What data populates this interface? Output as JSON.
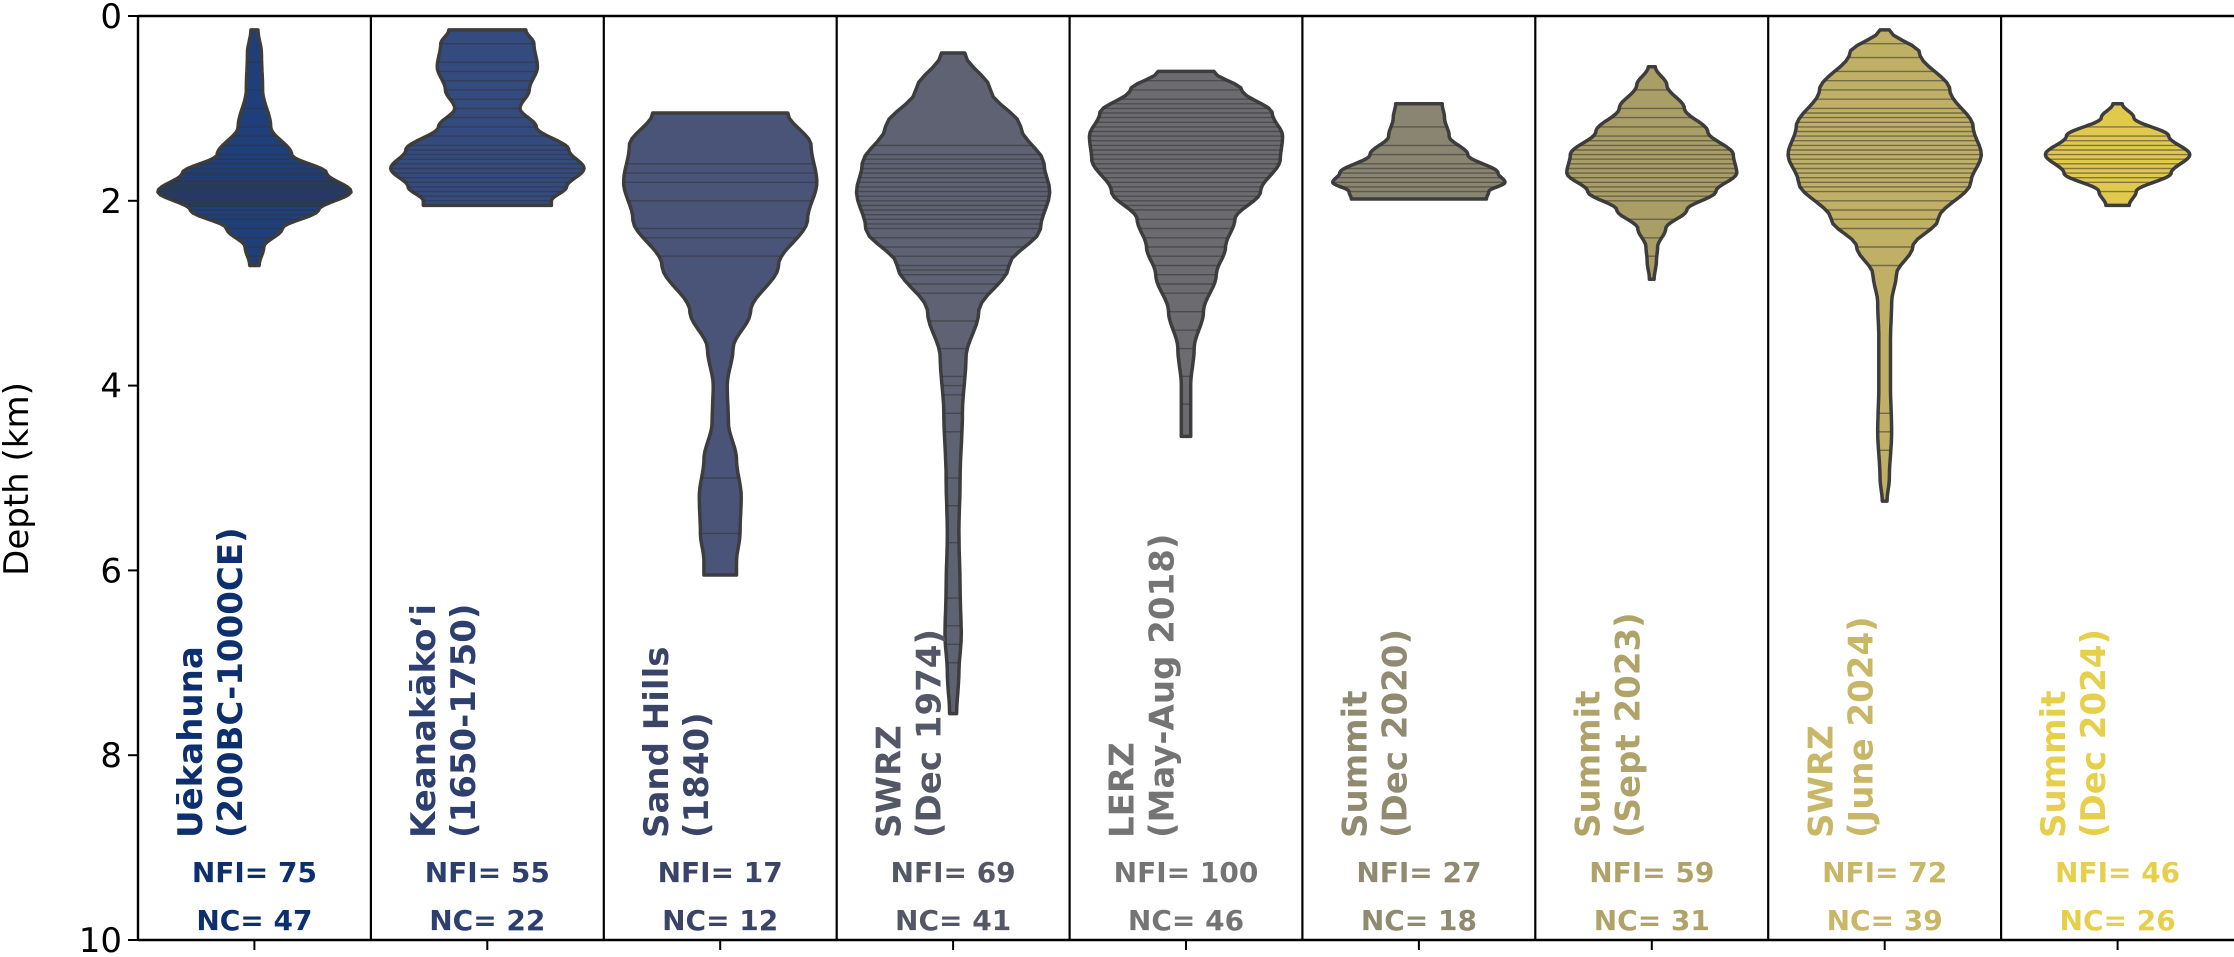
{
  "chart_data": {
    "type": "violin",
    "ylabel": "Depth (km)",
    "ylim": [
      10,
      0
    ],
    "yticks": [
      0,
      2,
      4,
      6,
      8,
      10
    ],
    "ytick_labels": [
      "0",
      "2",
      "4",
      "6",
      "8",
      "10"
    ],
    "series": [
      {
        "name_lines": [
          "Uēkahuna",
          "(200BC-1000CE)"
        ],
        "color": "#1f3f7a",
        "label_color": "#0d2f6e",
        "nfi": "NFI= 75",
        "nc": "NC= 47",
        "depth_min": 0.15,
        "depth_max": 2.7,
        "mode": 1.9,
        "max_halfwidth": 0.83,
        "profile": [
          [
            0.15,
            0.03
          ],
          [
            0.4,
            0.06
          ],
          [
            0.8,
            0.07
          ],
          [
            1.2,
            0.14
          ],
          [
            1.5,
            0.32
          ],
          [
            1.7,
            0.62
          ],
          [
            1.9,
            0.83
          ],
          [
            2.1,
            0.55
          ],
          [
            2.3,
            0.24
          ],
          [
            2.5,
            0.08
          ],
          [
            2.7,
            0.04
          ]
        ],
        "lines": [
          0.5,
          0.8,
          1.0,
          1.2,
          1.3,
          1.4,
          1.5,
          1.55,
          1.6,
          1.65,
          1.7,
          1.72,
          1.75,
          1.78,
          1.8,
          1.82,
          1.84,
          1.86,
          1.88,
          1.9,
          1.92,
          1.94,
          1.96,
          1.98,
          2.0,
          2.02,
          2.04,
          2.06,
          2.1,
          2.15,
          2.2,
          2.3,
          2.4,
          2.5,
          2.6
        ]
      },
      {
        "name_lines": [
          "Keanakākoʻi",
          "(1650-1750)"
        ],
        "color": "#344b80",
        "label_color": "#2d3f6f",
        "nfi": "NFI= 55",
        "nc": "NC= 22",
        "depth_min": 0.15,
        "depth_max": 2.05,
        "mode": 1.65,
        "max_halfwidth": 0.83,
        "profile": [
          [
            0.15,
            0.33
          ],
          [
            0.3,
            0.4
          ],
          [
            0.55,
            0.43
          ],
          [
            0.8,
            0.36
          ],
          [
            1.0,
            0.28
          ],
          [
            1.2,
            0.42
          ],
          [
            1.45,
            0.7
          ],
          [
            1.65,
            0.83
          ],
          [
            1.85,
            0.68
          ],
          [
            2.0,
            0.55
          ],
          [
            2.05,
            0.55
          ]
        ],
        "lines": [
          0.3,
          0.5,
          0.6,
          0.7,
          0.8,
          0.9,
          1.0,
          1.1,
          1.2,
          1.3,
          1.4,
          1.45,
          1.5,
          1.55,
          1.6,
          1.65,
          1.7,
          1.75,
          1.8,
          1.85,
          1.9,
          1.95,
          2.0
        ]
      },
      {
        "name_lines": [
          "Sand Hills",
          "(1840)"
        ],
        "color": "#4a5478",
        "label_color": "#3a4466",
        "nfi": "NFI= 17",
        "nc": "NC= 12",
        "depth_min": 1.05,
        "depth_max": 6.05,
        "mode": 1.8,
        "max_halfwidth": 0.83,
        "profile": [
          [
            1.05,
            0.58
          ],
          [
            1.4,
            0.78
          ],
          [
            1.8,
            0.83
          ],
          [
            2.2,
            0.75
          ],
          [
            2.7,
            0.5
          ],
          [
            3.2,
            0.26
          ],
          [
            3.6,
            0.11
          ],
          [
            4.0,
            0.06
          ],
          [
            4.4,
            0.07
          ],
          [
            4.8,
            0.14
          ],
          [
            5.2,
            0.18
          ],
          [
            5.6,
            0.17
          ],
          [
            5.9,
            0.14
          ],
          [
            6.05,
            0.14
          ]
        ],
        "lines": [
          1.6,
          1.7,
          1.8,
          2.0,
          2.3,
          2.4,
          2.6,
          5.0,
          5.6
        ]
      },
      {
        "name_lines": [
          "SWRZ",
          "(Dec 1974)"
        ],
        "color": "#5e6273",
        "label_color": "#545866",
        "nfi": "NFI= 69",
        "nc": "NC= 41",
        "depth_min": 0.4,
        "depth_max": 7.55,
        "mode": 1.9,
        "max_halfwidth": 0.83,
        "profile": [
          [
            0.4,
            0.1
          ],
          [
            0.8,
            0.32
          ],
          [
            1.2,
            0.58
          ],
          [
            1.6,
            0.78
          ],
          [
            1.9,
            0.83
          ],
          [
            2.3,
            0.75
          ],
          [
            2.7,
            0.48
          ],
          [
            3.2,
            0.22
          ],
          [
            3.7,
            0.11
          ],
          [
            4.3,
            0.08
          ],
          [
            5.0,
            0.06
          ],
          [
            5.6,
            0.05
          ],
          [
            6.2,
            0.06
          ],
          [
            6.7,
            0.07
          ],
          [
            7.1,
            0.05
          ],
          [
            7.55,
            0.03
          ]
        ],
        "lines": [
          1.4,
          1.5,
          1.55,
          1.6,
          1.65,
          1.7,
          1.75,
          1.8,
          1.85,
          1.9,
          1.95,
          2.0,
          2.05,
          2.1,
          2.15,
          2.2,
          2.25,
          2.3,
          2.4,
          2.5,
          2.6,
          2.7,
          2.75,
          2.8,
          2.9,
          3.0,
          3.3,
          3.6,
          3.9,
          4.0,
          4.1,
          4.3,
          4.5,
          5.0,
          5.3,
          5.7,
          6.3,
          6.6,
          6.8,
          7.0
        ]
      },
      {
        "name_lines": [
          "LERZ",
          "(May-Aug 2018)"
        ],
        "color": "#6c6c70",
        "label_color": "#747474",
        "nfi": "NFI= 100",
        "nc": "NC= 46",
        "depth_min": 0.6,
        "depth_max": 4.55,
        "mode": 1.5,
        "max_halfwidth": 0.83,
        "profile": [
          [
            0.6,
            0.24
          ],
          [
            0.8,
            0.48
          ],
          [
            1.05,
            0.74
          ],
          [
            1.3,
            0.83
          ],
          [
            1.55,
            0.81
          ],
          [
            1.9,
            0.64
          ],
          [
            2.2,
            0.42
          ],
          [
            2.5,
            0.34
          ],
          [
            2.8,
            0.26
          ],
          [
            3.2,
            0.15
          ],
          [
            3.6,
            0.07
          ],
          [
            4.0,
            0.04
          ],
          [
            4.3,
            0.04
          ],
          [
            4.55,
            0.04
          ]
        ],
        "lines": [
          0.7,
          0.8,
          0.9,
          0.95,
          1.0,
          1.05,
          1.1,
          1.15,
          1.2,
          1.25,
          1.3,
          1.35,
          1.4,
          1.45,
          1.5,
          1.55,
          1.6,
          1.65,
          1.7,
          1.75,
          1.8,
          1.85,
          1.9,
          1.95,
          2.0,
          2.05,
          2.1,
          2.2,
          2.3,
          2.4,
          2.5,
          2.6,
          2.7,
          2.8,
          2.9,
          3.0,
          3.2,
          3.4,
          3.6,
          3.9,
          4.2
        ]
      },
      {
        "name_lines": [
          "Summit",
          "(Dec 2020)"
        ],
        "color": "#8a8570",
        "label_color": "#8f8a70",
        "nfi": "NFI= 27",
        "nc": "NC= 18",
        "depth_min": 0.95,
        "depth_max": 1.98,
        "mode": 1.75,
        "max_halfwidth": 0.74,
        "profile": [
          [
            0.95,
            0.2
          ],
          [
            1.1,
            0.22
          ],
          [
            1.3,
            0.26
          ],
          [
            1.5,
            0.42
          ],
          [
            1.7,
            0.68
          ],
          [
            1.8,
            0.74
          ],
          [
            1.9,
            0.6
          ],
          [
            1.98,
            0.58
          ]
        ],
        "lines": [
          1.2,
          1.4,
          1.5,
          1.6,
          1.65,
          1.7,
          1.75,
          1.8,
          1.85,
          1.9
        ]
      },
      {
        "name_lines": [
          "Summit",
          "(Sept 2023)"
        ],
        "color": "#a89e66",
        "label_color": "#b0a36a",
        "nfi": "NFI= 59",
        "nc": "NC= 31",
        "depth_min": 0.55,
        "depth_max": 2.85,
        "mode": 1.6,
        "max_halfwidth": 0.74,
        "profile": [
          [
            0.55,
            0.03
          ],
          [
            0.75,
            0.13
          ],
          [
            1.0,
            0.28
          ],
          [
            1.25,
            0.48
          ],
          [
            1.5,
            0.7
          ],
          [
            1.7,
            0.73
          ],
          [
            1.9,
            0.55
          ],
          [
            2.1,
            0.3
          ],
          [
            2.3,
            0.12
          ],
          [
            2.5,
            0.05
          ],
          [
            2.65,
            0.04
          ],
          [
            2.85,
            0.02
          ]
        ],
        "lines": [
          0.8,
          1.0,
          1.1,
          1.2,
          1.3,
          1.35,
          1.4,
          1.45,
          1.5,
          1.55,
          1.6,
          1.65,
          1.7,
          1.75,
          1.8,
          1.85,
          1.9,
          1.95,
          2.0,
          2.2,
          2.4,
          2.6
        ]
      },
      {
        "name_lines": [
          "SWRZ",
          "(June 2024)"
        ],
        "color": "#bfb065",
        "label_color": "#c8b766",
        "nfi": "NFI= 72",
        "nc": "NC= 39",
        "depth_min": 0.15,
        "depth_max": 5.25,
        "mode": 1.5,
        "max_halfwidth": 0.83,
        "profile": [
          [
            0.15,
            0.04
          ],
          [
            0.4,
            0.3
          ],
          [
            0.8,
            0.56
          ],
          [
            1.2,
            0.76
          ],
          [
            1.5,
            0.83
          ],
          [
            1.8,
            0.74
          ],
          [
            2.2,
            0.46
          ],
          [
            2.5,
            0.24
          ],
          [
            2.8,
            0.1
          ],
          [
            3.1,
            0.06
          ],
          [
            3.5,
            0.05
          ],
          [
            4.0,
            0.05
          ],
          [
            4.5,
            0.06
          ],
          [
            5.0,
            0.04
          ],
          [
            5.25,
            0.02
          ]
        ],
        "lines": [
          0.3,
          0.45,
          0.6,
          0.7,
          0.8,
          0.9,
          1.0,
          1.05,
          1.1,
          1.15,
          1.2,
          1.25,
          1.3,
          1.35,
          1.4,
          1.45,
          1.5,
          1.55,
          1.6,
          1.65,
          1.7,
          1.75,
          1.8,
          1.85,
          1.9,
          2.0,
          2.1,
          2.2,
          2.3,
          2.5,
          2.7,
          4.3,
          4.5,
          4.7
        ]
      },
      {
        "name_lines": [
          "Summit",
          "(Dec 2024)"
        ],
        "color": "#e0c94c",
        "label_color": "#e6cf4a",
        "nfi": "NFI= 46",
        "nc": "NC= 26",
        "depth_min": 0.95,
        "depth_max": 2.05,
        "mode": 1.5,
        "max_halfwidth": 0.62,
        "profile": [
          [
            0.95,
            0.04
          ],
          [
            1.1,
            0.14
          ],
          [
            1.3,
            0.44
          ],
          [
            1.5,
            0.62
          ],
          [
            1.7,
            0.46
          ],
          [
            1.9,
            0.16
          ],
          [
            2.05,
            0.1
          ]
        ],
        "lines": [
          1.2,
          1.3,
          1.35,
          1.4,
          1.45,
          1.5,
          1.55,
          1.6,
          1.65,
          1.7,
          1.75,
          1.8,
          1.9
        ]
      }
    ]
  }
}
